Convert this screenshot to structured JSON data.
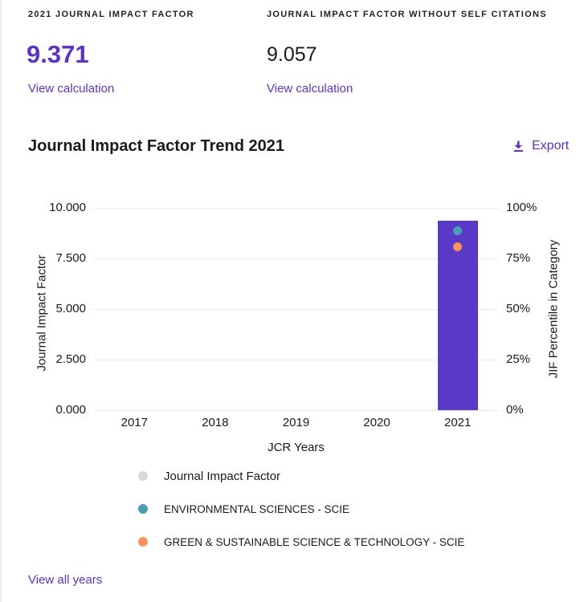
{
  "metrics": {
    "jif": {
      "label": "2021 JOURNAL IMPACT FACTOR",
      "value": "9.371",
      "link_label": "View calculation"
    },
    "jif_without_self_citations": {
      "label": "JOURNAL IMPACT FACTOR WITHOUT SELF CITATIONS",
      "value": "9.057",
      "link_label": "View calculation"
    }
  },
  "trend_section": {
    "title": "Journal Impact Factor Trend 2021",
    "export_label": "Export",
    "view_all_years_label": "View all years"
  },
  "colors": {
    "accent_purple": "#5E33BF",
    "bar_purple": "#5C38C8",
    "teal": "#4A9BB4",
    "orange": "#F5945C",
    "legend_gray": "#D9D9D9",
    "gridline": "#e8e8e8",
    "text_dark": "#1a1a1a"
  },
  "chart_data": {
    "type": "bar",
    "title": "Journal Impact Factor Trend 2021",
    "x": [
      "2017",
      "2018",
      "2019",
      "2020",
      "2021"
    ],
    "xlabel": "JCR Years",
    "grid": true,
    "legend_position": "bottom",
    "y_left": {
      "label": "Journal Impact Factor",
      "ticks": [
        "10.000",
        "7.500",
        "5.000",
        "2.500",
        "0.000"
      ],
      "range": [
        0,
        10
      ]
    },
    "y_right": {
      "label": "JIF Percentile in Category",
      "ticks": [
        "100%",
        "75%",
        "50%",
        "25%",
        "0%"
      ],
      "range": [
        0,
        100
      ]
    },
    "series": [
      {
        "name": "Journal Impact Factor",
        "mark": "bar",
        "axis": "left",
        "color": "#5C38C8",
        "values": [
          null,
          null,
          null,
          null,
          9.371
        ]
      },
      {
        "name": "ENVIRONMENTAL SCIENCES - SCIE",
        "mark": "dot",
        "axis": "right",
        "color": "#4A9BB4",
        "values": [
          null,
          null,
          null,
          null,
          88.5
        ]
      },
      {
        "name": "GREEN & SUSTAINABLE SCIENCE & TECHNOLOGY - SCIE",
        "mark": "dot",
        "axis": "right",
        "color": "#F5945C",
        "values": [
          null,
          null,
          null,
          null,
          80.6
        ]
      }
    ],
    "legend": [
      {
        "label": "Journal Impact Factor",
        "color": "#D9D9D9"
      },
      {
        "label": "ENVIRONMENTAL SCIENCES - SCIE",
        "color": "#4A9BB4"
      },
      {
        "label": "GREEN & SUSTAINABLE SCIENCE & TECHNOLOGY - SCIE",
        "color": "#F5945C"
      }
    ]
  }
}
